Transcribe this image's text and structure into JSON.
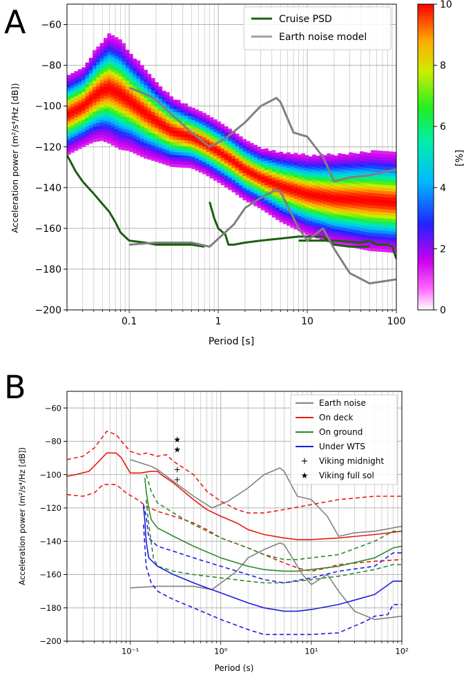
{
  "panels": {
    "a_label": "A",
    "b_label": "B"
  },
  "chart_data": [
    {
      "id": "A",
      "type": "heatmap",
      "title": "",
      "xlabel": "Period [s]",
      "ylabel": "Acceleration power (m²/s⁴/Hz [dB])",
      "xscale": "log",
      "xlim": [
        0.02,
        100
      ],
      "ylim": [
        -200,
        -50
      ],
      "grid": true,
      "xticks": [
        0.1,
        1,
        10,
        100
      ],
      "xtick_labels": [
        "0.1",
        "1",
        "10",
        "100"
      ],
      "yticks": [
        -200,
        -180,
        -160,
        -140,
        -120,
        -100,
        -80,
        -60
      ],
      "ytick_labels": [
        "−200",
        "−180",
        "−160",
        "−140",
        "−120",
        "−100",
        "−80",
        "−60"
      ],
      "legend_position": "top-right",
      "colorbar": {
        "label": "[%]",
        "range": [
          0,
          10
        ],
        "ticks": [
          0,
          2,
          4,
          6,
          8,
          10
        ],
        "tick_labels": [
          "0",
          "2",
          "4",
          "6",
          "8",
          "10"
        ]
      },
      "heatmap_ridge": {
        "period": [
          0.02,
          0.03,
          0.04,
          0.05,
          0.06,
          0.08,
          0.1,
          0.15,
          0.2,
          0.3,
          0.5,
          0.7,
          1,
          1.5,
          2,
          3,
          5,
          10,
          20,
          50,
          100
        ],
        "mode_db": [
          -105,
          -101,
          -96,
          -93,
          -92,
          -95,
          -98,
          -104,
          -108,
          -113,
          -116,
          -119,
          -123,
          -128,
          -132,
          -136,
          -140,
          -144,
          -146,
          -147,
          -148
        ],
        "spread_db": [
          8,
          8,
          9,
          10,
          11,
          11,
          10,
          9,
          8,
          7,
          6,
          6,
          6,
          6,
          6,
          6,
          7,
          8,
          9,
          10,
          10
        ]
      },
      "series": [
        {
          "name": "Cruise PSD",
          "color": "#1b5e0f",
          "segments": [
            {
              "x": [
                0.02,
                0.025,
                0.03,
                0.04,
                0.05,
                0.06,
                0.07,
                0.08,
                0.1,
                0.15,
                0.2,
                0.3,
                0.5,
                0.7
              ],
              "y": [
                -124,
                -132,
                -137,
                -143,
                -148,
                -152,
                -157,
                -162,
                -166,
                -167,
                -168,
                -168,
                -168,
                -169
              ]
            },
            {
              "x": [
                0.8,
                0.9,
                1.0,
                1.2,
                1.3,
                1.5,
                2,
                3,
                5,
                8,
                10,
                15,
                20,
                30,
                50
              ],
              "y": [
                -147,
                -155,
                -160,
                -163,
                -168,
                -168,
                -167,
                -166,
                -165,
                -164,
                -164,
                -164,
                -168,
                -169,
                -169
              ]
            },
            {
              "x": [
                8,
                10,
                20,
                40,
                50,
                60,
                80,
                90,
                100
              ],
              "y": [
                -166,
                -166,
                -166,
                -167,
                -166,
                -168,
                -168,
                -169,
                -175
              ]
            }
          ]
        },
        {
          "name": "Earth noise model",
          "color": "#808080",
          "segments": [
            {
              "x": [
                0.1,
                0.17,
                0.2,
                0.5,
                0.8,
                1.2,
                2,
                3,
                4.5,
                5,
                7,
                10,
                15,
                20,
                30,
                50,
                100
              ],
              "y": [
                -91,
                -95,
                -97,
                -113,
                -120,
                -116,
                -108,
                -100,
                -96,
                -98,
                -113,
                -115,
                -125,
                -137,
                -135,
                -134,
                -131
              ]
            },
            {
              "x": [
                0.1,
                0.2,
                0.5,
                0.8,
                1.5,
                2,
                3,
                4.5,
                5,
                8,
                10,
                15,
                20,
                30,
                50,
                100
              ],
              "y": [
                -168,
                -167,
                -167,
                -169,
                -158,
                -150,
                -145,
                -141,
                -142,
                -160,
                -166,
                -160,
                -170,
                -182,
                -187,
                -185
              ]
            }
          ]
        }
      ]
    },
    {
      "id": "B",
      "type": "line",
      "title": "",
      "xlabel": "Period (s)",
      "ylabel": "Acceleration power (m²/s⁴/Hz [dB])",
      "xscale": "log",
      "xlim": [
        0.02,
        100
      ],
      "ylim": [
        -200,
        -50
      ],
      "grid": true,
      "xticks": [
        0.1,
        1,
        10,
        100
      ],
      "xtick_labels": [
        "10⁻¹",
        "10⁰",
        "10¹",
        "10²"
      ],
      "yticks": [
        -200,
        -180,
        -160,
        -140,
        -120,
        -100,
        -80,
        -60
      ],
      "ytick_labels": [
        "−200",
        "−180",
        "−160",
        "−140",
        "−120",
        "−100",
        "−80",
        "−60"
      ],
      "legend_position": "top-right",
      "series": [
        {
          "name": "Earth noise",
          "color": "#808080",
          "style": "solid",
          "segments": [
            {
              "x": [
                0.1,
                0.17,
                0.2,
                0.5,
                0.8,
                1.2,
                2,
                3,
                4.5,
                5,
                7,
                10,
                15,
                20,
                30,
                50,
                100
              ],
              "y": [
                -91,
                -95,
                -97,
                -113,
                -120,
                -116,
                -108,
                -100,
                -96,
                -98,
                -113,
                -115,
                -125,
                -137,
                -135,
                -134,
                -131
              ]
            },
            {
              "x": [
                0.1,
                0.2,
                0.5,
                0.8,
                1.5,
                2,
                3,
                4.5,
                5,
                8,
                10,
                15,
                20,
                30,
                50,
                100
              ],
              "y": [
                -168,
                -167,
                -167,
                -169,
                -158,
                -150,
                -145,
                -141,
                -142,
                -160,
                -166,
                -160,
                -170,
                -182,
                -187,
                -185
              ]
            }
          ]
        },
        {
          "name": "On deck",
          "color": "#e8190f",
          "style": "solid",
          "segments": [
            {
              "x": [
                0.02,
                0.025,
                0.035,
                0.045,
                0.055,
                0.07,
                0.08,
                0.1,
                0.13,
                0.17,
                0.2,
                0.22,
                0.3,
                0.5,
                0.7,
                1,
                1.5,
                2,
                3,
                5,
                7,
                10,
                20,
                50,
                100
              ],
              "y": [
                -101,
                -100,
                -98,
                -92,
                -87,
                -87,
                -90,
                -99,
                -99,
                -98,
                -98,
                -100,
                -105,
                -115,
                -121,
                -125,
                -129,
                -133,
                -136,
                -138,
                -139,
                -139,
                -138,
                -136,
                -134
              ]
            }
          ]
        },
        {
          "name": "On deck upper",
          "color": "#e8190f",
          "style": "dashed",
          "segments": [
            {
              "x": [
                0.02,
                0.03,
                0.04,
                0.05,
                0.055,
                0.07,
                0.08,
                0.1,
                0.13,
                0.15,
                0.2,
                0.25,
                0.3,
                0.5,
                0.7,
                1,
                1.5,
                2,
                3,
                5,
                10,
                20,
                50,
                100
              ],
              "y": [
                -91,
                -89,
                -84,
                -77,
                -74,
                -76,
                -80,
                -86,
                -88,
                -87,
                -89,
                -88,
                -92,
                -100,
                -110,
                -116,
                -121,
                -123,
                -123,
                -121,
                -118,
                -115,
                -113,
                -113
              ]
            }
          ]
        },
        {
          "name": "On deck lower",
          "color": "#e8190f",
          "style": "dashed",
          "segments": [
            {
              "x": [
                0.02,
                0.03,
                0.04,
                0.05,
                0.07,
                0.09,
                0.12,
                0.15,
                0.2,
                0.3,
                0.5,
                0.7,
                1,
                2,
                3,
                5,
                7,
                10,
                15,
                20,
                50,
                100
              ],
              "y": [
                -112,
                -113,
                -111,
                -106,
                -106,
                -111,
                -115,
                -119,
                -122,
                -125,
                -129,
                -133,
                -138,
                -144,
                -148,
                -153,
                -156,
                -158,
                -156,
                -154,
                -152,
                -151
              ]
            }
          ]
        },
        {
          "name": "On ground",
          "color": "#2a8a28",
          "style": "solid",
          "segments": [
            {
              "x": [
                0.145,
                0.15,
                0.16,
                0.17,
                0.2,
                0.3,
                0.5,
                1,
                2,
                3,
                5,
                7,
                10,
                20,
                50,
                80,
                100
              ],
              "y": [
                -102,
                -110,
                -120,
                -127,
                -132,
                -137,
                -143,
                -150,
                -155,
                -157,
                -158,
                -158,
                -157,
                -155,
                -150,
                -144,
                -143
              ]
            }
          ]
        },
        {
          "name": "On ground upper",
          "color": "#2a8a28",
          "style": "dashed",
          "segments": [
            {
              "x": [
                0.15,
                0.16,
                0.17,
                0.2,
                0.3,
                0.5,
                1,
                2,
                3,
                5,
                7,
                10,
                20,
                50,
                80,
                100
              ],
              "y": [
                -100,
                -105,
                -110,
                -117,
                -123,
                -130,
                -138,
                -144,
                -148,
                -151,
                -151,
                -150,
                -148,
                -140,
                -134,
                -134
              ]
            }
          ]
        },
        {
          "name": "On ground lower",
          "color": "#2a8a28",
          "style": "dashed",
          "segments": [
            {
              "x": [
                0.15,
                0.16,
                0.18,
                0.2,
                0.3,
                0.5,
                1,
                2,
                3,
                5,
                10,
                20,
                50,
                80,
                100
              ],
              "y": [
                -115,
                -130,
                -150,
                -155,
                -158,
                -160,
                -162,
                -164,
                -165,
                -165,
                -163,
                -161,
                -157,
                -154,
                -154
              ]
            }
          ]
        },
        {
          "name": "Under WTS",
          "color": "#1c1ce0",
          "style": "solid",
          "segments": [
            {
              "x": [
                0.14,
                0.145,
                0.15,
                0.16,
                0.2,
                0.3,
                0.5,
                0.7,
                1,
                2,
                3,
                5,
                7,
                10,
                20,
                50,
                80,
                100
              ],
              "y": [
                -119,
                -128,
                -140,
                -150,
                -155,
                -160,
                -165,
                -168,
                -171,
                -177,
                -180,
                -182,
                -182,
                -181,
                -178,
                -172,
                -164,
                -164
              ]
            }
          ]
        },
        {
          "name": "Under WTS upper",
          "color": "#1c1ce0",
          "style": "dashed",
          "segments": [
            {
              "x": [
                0.14,
                0.15,
                0.16,
                0.2,
                0.3,
                0.5,
                1,
                2,
                3,
                5,
                10,
                20,
                50,
                80,
                100
              ],
              "y": [
                -118,
                -125,
                -138,
                -143,
                -146,
                -150,
                -155,
                -160,
                -163,
                -165,
                -162,
                -158,
                -155,
                -147,
                -147
              ]
            }
          ]
        },
        {
          "name": "Under WTS lower",
          "color": "#1c1ce0",
          "style": "dashed",
          "segments": [
            {
              "x": [
                0.14,
                0.15,
                0.17,
                0.2,
                0.3,
                0.5,
                1,
                2,
                3,
                5,
                10,
                20,
                40,
                50,
                70,
                80,
                100
              ],
              "y": [
                -130,
                -155,
                -165,
                -170,
                -175,
                -180,
                -187,
                -193,
                -196,
                -196,
                -196,
                -195,
                -188,
                -185,
                -184,
                -178,
                -178
              ]
            }
          ]
        }
      ],
      "markers": [
        {
          "name": "Viking midnight",
          "symbol": "+",
          "color": "#c020c0",
          "x": [
            0.33,
            0.33
          ],
          "y": [
            -97,
            -103
          ]
        },
        {
          "name": "Viking full sol",
          "symbol": "★",
          "color": "#1cc4c4",
          "x": [
            0.33,
            0.33
          ],
          "y": [
            -79,
            -85
          ]
        }
      ],
      "legend": [
        "Earth noise",
        "On deck",
        "On ground",
        "Under WTS",
        "Viking midnight",
        "Viking full sol"
      ]
    }
  ]
}
